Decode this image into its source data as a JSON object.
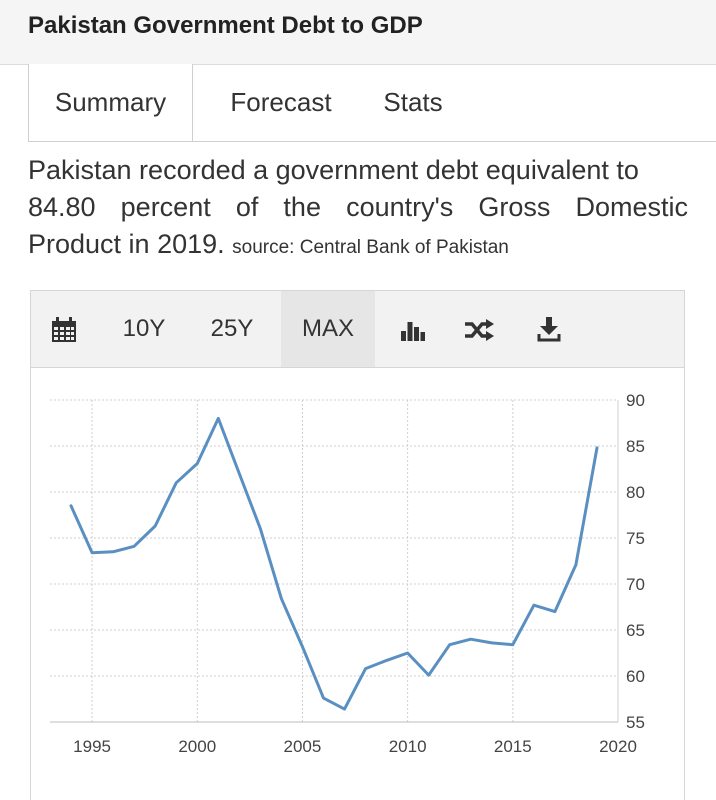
{
  "page": {
    "title": "Pakistan Government Debt to GDP"
  },
  "tabs": [
    {
      "label": "Summary",
      "active": true
    },
    {
      "label": "Forecast",
      "active": false
    },
    {
      "label": "Stats",
      "active": false
    }
  ],
  "summary": {
    "line1": "Pakistan recorded a government debt equivalent to",
    "line2": "84.80 percent of the country's Gross Domestic",
    "line3": "Product in 2019.",
    "source": "source: Central Bank of Pakistan"
  },
  "toolbar": {
    "calendar_icon": "calendar-icon",
    "range_10y": "10Y",
    "range_25y": "25Y",
    "range_max": "MAX",
    "selected_range": "MAX",
    "bar_icon": "bar-chart-icon",
    "shuffle_icon": "shuffle-icon",
    "download_icon": "download-icon"
  },
  "chart_data": {
    "type": "line",
    "title": "",
    "xlabel": "",
    "ylabel": "",
    "x": [
      1994,
      1995,
      1996,
      1997,
      1998,
      1999,
      2000,
      2001,
      2002,
      2003,
      2004,
      2005,
      2006,
      2007,
      2008,
      2009,
      2010,
      2011,
      2012,
      2013,
      2014,
      2015,
      2016,
      2017,
      2018,
      2019
    ],
    "values": [
      78.5,
      73.4,
      73.5,
      74.1,
      76.3,
      81.0,
      83.1,
      88.0,
      82.0,
      76.0,
      68.4,
      63.2,
      57.6,
      56.4,
      60.8,
      61.7,
      62.5,
      60.1,
      63.4,
      64.0,
      63.6,
      63.4,
      67.7,
      67.0,
      72.1,
      84.8
    ],
    "xlim": [
      1993,
      2020
    ],
    "ylim": [
      55,
      90
    ],
    "x_ticks": [
      "1995",
      "2000",
      "2005",
      "2010",
      "2015",
      "2020"
    ],
    "y_ticks": [
      "55",
      "60",
      "65",
      "70",
      "75",
      "80",
      "85",
      "90"
    ],
    "grid": true,
    "y_axis_side": "right",
    "line_color": "#5a8fc2"
  }
}
